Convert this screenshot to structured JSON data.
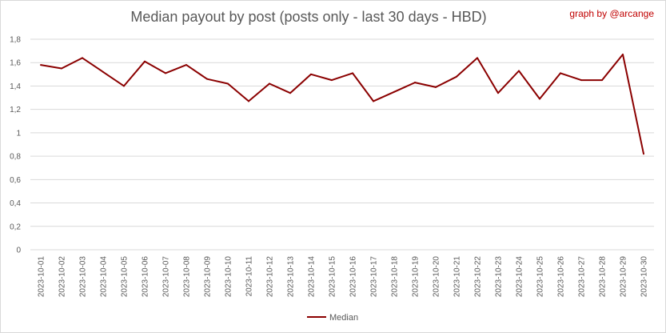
{
  "chart_data": {
    "type": "line",
    "title": "Median payout by post (posts only - last 30 days - HBD)",
    "credit": "graph by @arcange",
    "xlabel": "",
    "ylabel": "",
    "ylim": [
      0,
      1.8
    ],
    "yticks": [
      "0",
      "0,2",
      "0,4",
      "0,6",
      "0,8",
      "1",
      "1,2",
      "1,4",
      "1,6",
      "1,8"
    ],
    "grid": true,
    "legend_position": "bottom",
    "categories": [
      "2023-10-01",
      "2023-10-02",
      "2023-10-03",
      "2023-10-04",
      "2023-10-05",
      "2023-10-06",
      "2023-10-07",
      "2023-10-08",
      "2023-10-09",
      "2023-10-10",
      "2023-10-11",
      "2023-10-12",
      "2023-10-13",
      "2023-10-14",
      "2023-10-15",
      "2023-10-16",
      "2023-10-17",
      "2023-10-18",
      "2023-10-19",
      "2023-10-20",
      "2023-10-21",
      "2023-10-22",
      "2023-10-23",
      "2023-10-24",
      "2023-10-25",
      "2023-10-26",
      "2023-10-27",
      "2023-10-28",
      "2023-10-29",
      "2023-10-30"
    ],
    "series": [
      {
        "name": "Median",
        "color": "#8b0000",
        "values": [
          1.58,
          1.55,
          1.64,
          1.52,
          1.4,
          1.61,
          1.51,
          1.58,
          1.46,
          1.42,
          1.27,
          1.42,
          1.34,
          1.5,
          1.45,
          1.51,
          1.27,
          1.35,
          1.43,
          1.39,
          1.48,
          1.64,
          1.34,
          1.53,
          1.29,
          1.51,
          1.45,
          1.45,
          1.67,
          0.82
        ]
      }
    ]
  }
}
